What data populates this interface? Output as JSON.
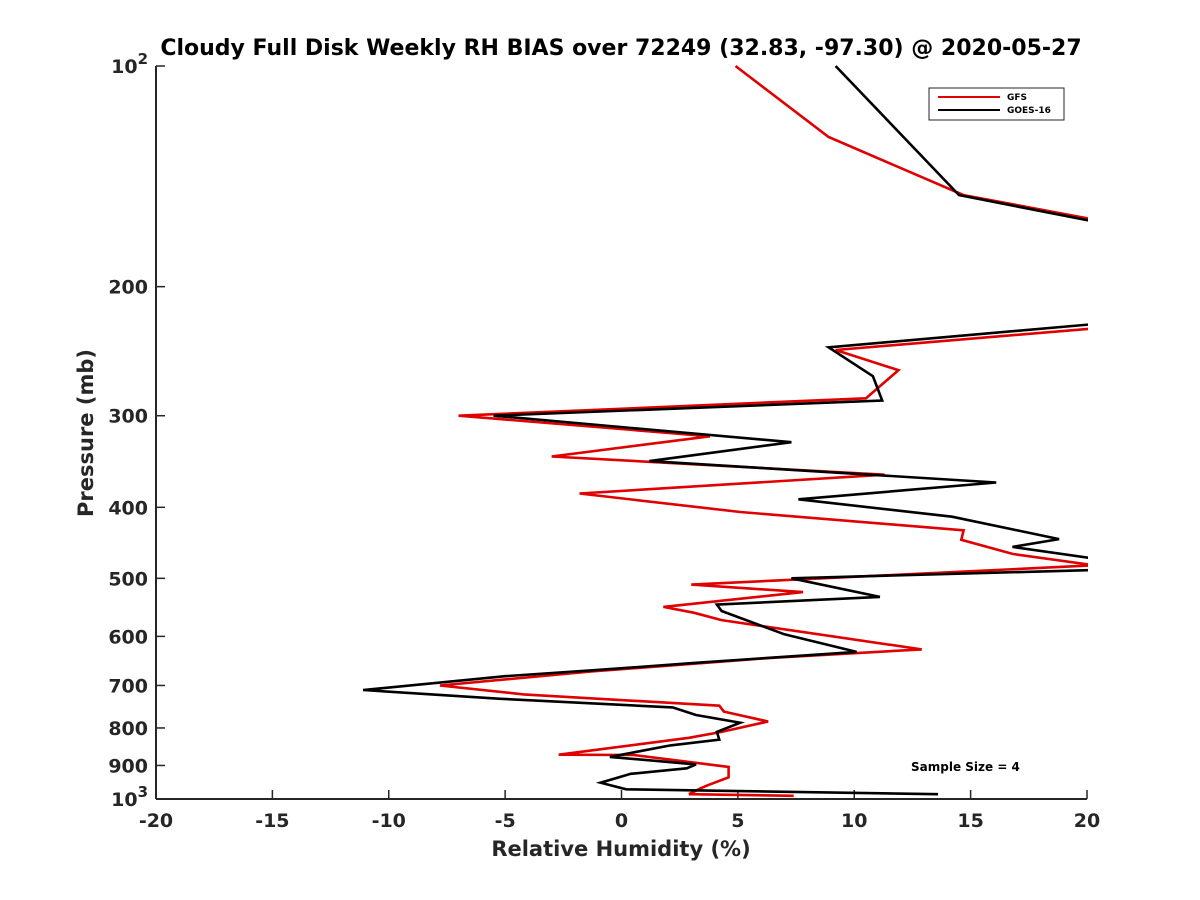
{
  "chart_data": {
    "type": "line",
    "title": "Cloudy Full Disk Weekly RH BIAS over 72249 (32.83, -97.30) @ 2020-05-27",
    "xlabel": "Relative Humidity (%)",
    "ylabel": "Pressure (mb)",
    "xlim": [
      -20,
      20
    ],
    "ylim": [
      100,
      1000
    ],
    "yscale": "log",
    "y_reversed": true,
    "grid": false,
    "x_ticks": [
      "-20",
      "-15",
      "-10",
      "-5",
      "0",
      "5",
      "10",
      "15",
      "20"
    ],
    "y_ticks": [
      {
        "base": "10",
        "exp": "2"
      },
      {
        "base": "200",
        "exp": ""
      },
      {
        "base": "300",
        "exp": ""
      },
      {
        "base": "400",
        "exp": ""
      },
      {
        "base": "500",
        "exp": ""
      },
      {
        "base": "600",
        "exp": ""
      },
      {
        "base": "700",
        "exp": ""
      },
      {
        "base": "800",
        "exp": ""
      },
      {
        "base": "900",
        "exp": ""
      },
      {
        "base": "10",
        "exp": "3"
      }
    ],
    "legend_position": "top-right",
    "annotation": "Sample Size = 4",
    "series": [
      {
        "name": "GFS",
        "color": "#e00000",
        "points": [
          [
            4.9,
            100
          ],
          [
            8.9,
            125
          ],
          [
            14.7,
            150
          ],
          [
            20.3,
            162
          ],
          [
            20.3,
            228
          ],
          [
            9.2,
            244
          ],
          [
            11.9,
            260
          ],
          [
            10.5,
            284
          ],
          [
            -7.0,
            300
          ],
          [
            3.8,
            320
          ],
          [
            -3.0,
            341
          ],
          [
            11.3,
            361
          ],
          [
            -1.8,
            383
          ],
          [
            5.1,
            406
          ],
          [
            14.7,
            430
          ],
          [
            14.6,
            443
          ],
          [
            16.8,
            463
          ],
          [
            20.3,
            480
          ],
          [
            20.3,
            480
          ],
          [
            3.0,
            510
          ],
          [
            7.8,
            522
          ],
          [
            1.8,
            547
          ],
          [
            3.1,
            557
          ],
          [
            4.3,
            570
          ],
          [
            12.9,
            625
          ],
          [
            6.4,
            642
          ],
          [
            -1.3,
            670
          ],
          [
            -7.8,
            700
          ],
          [
            -4.2,
            720
          ],
          [
            4.2,
            746
          ],
          [
            4.4,
            760
          ],
          [
            6.3,
            784
          ],
          [
            4.3,
            810
          ],
          [
            2.9,
            825
          ],
          [
            -2.7,
            870
          ],
          [
            0.5,
            871
          ],
          [
            4.6,
            904
          ],
          [
            4.6,
            934
          ],
          [
            3.7,
            958
          ],
          [
            3.4,
            967
          ],
          [
            2.9,
            985
          ],
          [
            7.4,
            990
          ]
        ]
      },
      {
        "name": "GOES-16",
        "color": "#000000",
        "points": [
          [
            9.2,
            100
          ],
          [
            14.5,
            150
          ],
          [
            20.3,
            163
          ],
          [
            20.3,
            225
          ],
          [
            8.9,
            242
          ],
          [
            10.8,
            265
          ],
          [
            11.2,
            286
          ],
          [
            -5.5,
            300
          ],
          [
            7.3,
            326
          ],
          [
            1.2,
            346
          ],
          [
            16.1,
            370
          ],
          [
            7.6,
            390
          ],
          [
            14.2,
            412
          ],
          [
            18.8,
            442
          ],
          [
            16.8,
            453
          ],
          [
            20.3,
            470
          ],
          [
            20.3,
            487
          ],
          [
            7.3,
            500
          ],
          [
            11.1,
            530
          ],
          [
            4.1,
            543
          ],
          [
            4.3,
            554
          ],
          [
            7.0,
            596
          ],
          [
            10.1,
            630
          ],
          [
            3.2,
            652
          ],
          [
            -1.1,
            667
          ],
          [
            -5.0,
            680
          ],
          [
            -11.1,
            710
          ],
          [
            -5.2,
            730
          ],
          [
            2.2,
            750
          ],
          [
            3.2,
            768
          ],
          [
            5.1,
            787
          ],
          [
            4.1,
            810
          ],
          [
            4.2,
            830
          ],
          [
            2.1,
            845
          ],
          [
            -0.5,
            876
          ],
          [
            3.2,
            897
          ],
          [
            2.8,
            908
          ],
          [
            0.4,
            924
          ],
          [
            -0.9,
            950
          ],
          [
            0.2,
            970
          ],
          [
            13.6,
            985
          ]
        ]
      }
    ]
  }
}
